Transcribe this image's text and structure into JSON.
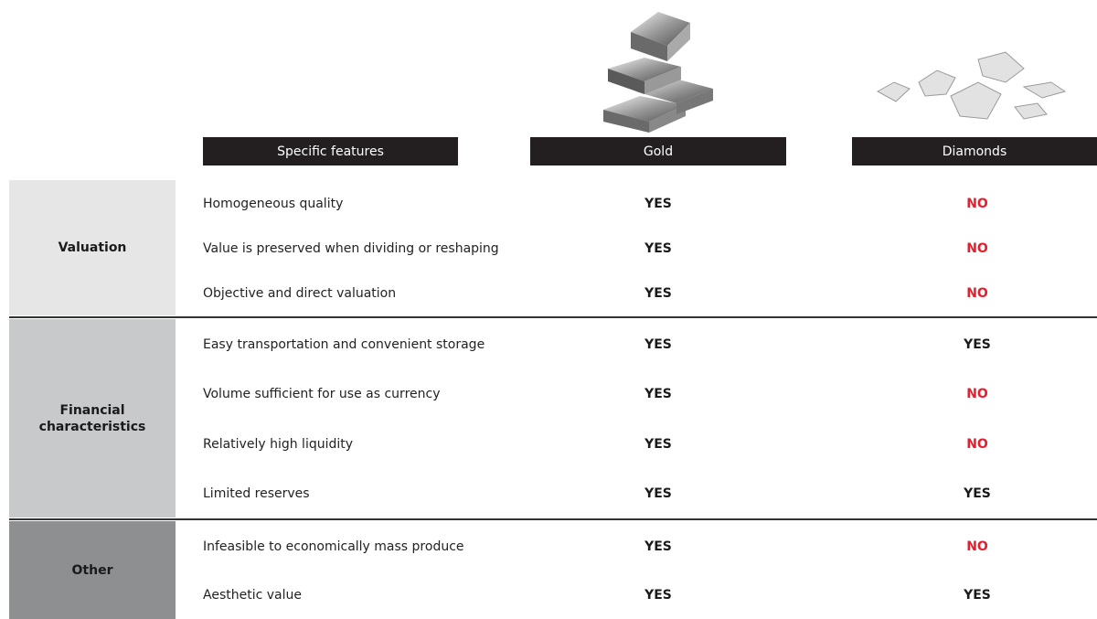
{
  "table": {
    "headers": [
      "Specific features",
      "Gold",
      "Diamonds"
    ],
    "answer_colors": {
      "YES": "#1a1a1a",
      "NO": "#e5202e"
    },
    "groups": [
      {
        "label": "Valuation",
        "rows": [
          [
            "Homogeneous quality",
            "YES",
            "NO"
          ],
          [
            "Value is preserved when dividing or reshaping",
            "YES",
            "NO"
          ],
          [
            "Objective and direct valuation",
            "YES",
            "NO"
          ]
        ]
      },
      {
        "label": "Financial characteristics",
        "rows": [
          [
            "Easy transportation and convenient storage",
            "YES",
            "YES"
          ],
          [
            "Volume sufficient for use as currency",
            "YES",
            "NO"
          ],
          [
            "Relatively high liquidity",
            "YES",
            "NO"
          ],
          [
            "Limited reserves",
            "YES",
            "YES"
          ]
        ]
      },
      {
        "label": "Other",
        "rows": [
          [
            "Infeasible to economically mass produce",
            "YES",
            "NO"
          ],
          [
            "Aesthetic value",
            "YES",
            "YES"
          ]
        ]
      }
    ]
  }
}
